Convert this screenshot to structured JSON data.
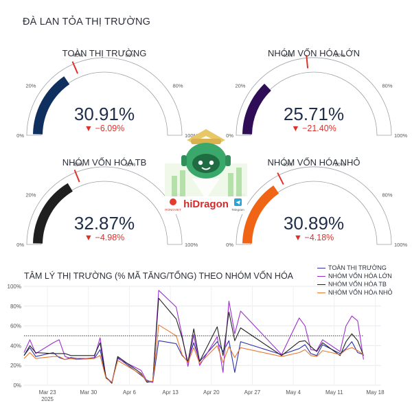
{
  "page_title": "ĐÀ LAN TỎA THỊ TRƯỜNG",
  "gauges": [
    {
      "label": "TOÀN THỊ TRƯỜNG",
      "value": "30.91%",
      "delta": "▼ −6.09%",
      "fraction": 0.3091,
      "marker": 0.37,
      "color": "#0f2f5f"
    },
    {
      "label": "NHÓM VỐN HÓA LỚN",
      "value": "25.71%",
      "delta": "▼ −21.40%",
      "fraction": 0.2571,
      "marker": 0.471,
      "color": "#2f0d57"
    },
    {
      "label": "NHÓM VỐN HÓA TB",
      "value": "32.87%",
      "delta": "▼ −4.98%",
      "fraction": 0.3287,
      "marker": 0.379,
      "color": "#1f1f1f"
    },
    {
      "label": "NHÓM VỐN HÓA NHỎ",
      "value": "30.89%",
      "delta": "▼ −4.18%",
      "fraction": 0.3089,
      "marker": 0.351,
      "color": "#f06416"
    }
  ],
  "gauge_ticks": [
    "0%",
    "20%",
    "40%",
    "60%",
    "80%",
    "100%"
  ],
  "logo": {
    "brand": "hiDragon",
    "left_badge": "RONGVIET",
    "right_badge": "Telegram"
  },
  "chart_data": {
    "type": "line",
    "title": "TÂM LÝ THỊ TRƯỜNG (% MÃ TĂNG/TỔNG) THEO NHÓM VỐN HÓA",
    "xlabel": "",
    "ylabel": "",
    "ylim": [
      0,
      100
    ],
    "yticks": [
      "0%",
      "20%",
      "40%",
      "60%",
      "80%",
      "100%"
    ],
    "xticks": [
      {
        "date": "2025-03-23",
        "label": "Mar 23",
        "sub": "2025"
      },
      {
        "date": "2025-03-30",
        "label": "Mar 30",
        "sub": ""
      },
      {
        "date": "2025-04-06",
        "label": "Apr 6",
        "sub": ""
      },
      {
        "date": "2025-04-13",
        "label": "Apr 13",
        "sub": ""
      },
      {
        "date": "2025-04-20",
        "label": "Apr 20",
        "sub": ""
      },
      {
        "date": "2025-04-27",
        "label": "Apr 27",
        "sub": ""
      },
      {
        "date": "2025-05-04",
        "label": "May 4",
        "sub": ""
      },
      {
        "date": "2025-05-11",
        "label": "May 11",
        "sub": ""
      },
      {
        "date": "2025-05-18",
        "label": "May 18",
        "sub": ""
      }
    ],
    "x_range": [
      "2025-03-19",
      "2025-05-19"
    ],
    "reference_line": 50,
    "legend_position": "top-right",
    "x": [
      "2025-03-19",
      "2025-03-20",
      "2025-03-21",
      "2025-03-24",
      "2025-03-25",
      "2025-03-26",
      "2025-03-27",
      "2025-03-28",
      "2025-03-31",
      "2025-04-01",
      "2025-04-02",
      "2025-04-03",
      "2025-04-04",
      "2025-04-08",
      "2025-04-09",
      "2025-04-10",
      "2025-04-11",
      "2025-04-14",
      "2025-04-15",
      "2025-04-16",
      "2025-04-17",
      "2025-04-18",
      "2025-04-21",
      "2025-04-22",
      "2025-04-23",
      "2025-04-24",
      "2025-04-25",
      "2025-05-02",
      "2025-05-05",
      "2025-05-06",
      "2025-05-07",
      "2025-05-08",
      "2025-05-09",
      "2025-05-12",
      "2025-05-13",
      "2025-05-14",
      "2025-05-15",
      "2025-05-16"
    ],
    "series": [
      {
        "name": "TOÀN THỊ TRƯỜNG",
        "color": "#2b2fa8",
        "values": [
          30,
          38,
          29,
          33,
          28,
          26,
          28,
          27,
          27,
          36,
          8,
          3,
          28,
          10,
          5,
          3,
          45,
          42,
          30,
          24,
          43,
          24,
          44,
          34,
          45,
          13,
          44,
          31,
          37,
          41,
          32,
          30,
          41,
          32,
          37,
          44,
          33,
          31
        ]
      },
      {
        "name": "NHÓM VỐN HÓA LỚN",
        "color": "#9b2fd0",
        "values": [
          33,
          46,
          32,
          43,
          46,
          29,
          27,
          26,
          28,
          48,
          8,
          2,
          27,
          15,
          4,
          3,
          96,
          79,
          50,
          19,
          51,
          20,
          49,
          13,
          85,
          52,
          75,
          31,
          68,
          60,
          36,
          35,
          46,
          34,
          60,
          70,
          65,
          26
        ]
      },
      {
        "name": "NHÓM VỐN HÓA TB",
        "color": "#1f1f1f",
        "values": [
          30,
          40,
          33,
          32,
          32,
          32,
          30,
          30,
          30,
          43,
          8,
          2,
          29,
          12,
          3,
          4,
          88,
          67,
          48,
          23,
          57,
          24,
          59,
          30,
          74,
          45,
          58,
          30,
          44,
          45,
          39,
          34,
          43,
          30,
          44,
          52,
          45,
          30
        ]
      },
      {
        "name": "NHÓM VỐN HÓA NHỎ",
        "color": "#e8772e",
        "values": [
          27,
          33,
          27,
          29,
          29,
          26,
          27,
          26,
          27,
          30,
          7,
          3,
          25,
          11,
          4,
          4,
          61,
          50,
          31,
          23,
          38,
          22,
          40,
          23,
          39,
          28,
          38,
          29,
          33,
          36,
          30,
          29,
          35,
          31,
          36,
          38,
          35,
          31
        ]
      }
    ]
  }
}
